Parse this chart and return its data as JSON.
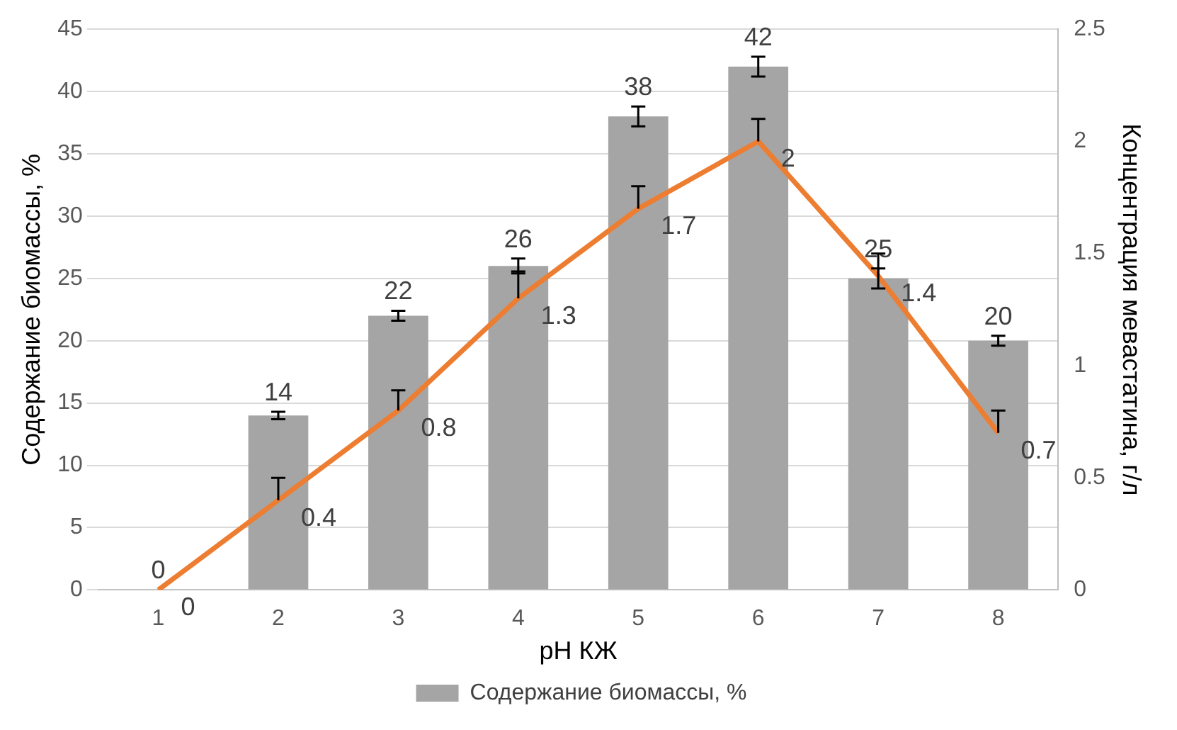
{
  "chart_data": {
    "type": "bar",
    "xlabel": "pH КЖ",
    "ylabel": "Содержание биомассы, %",
    "y2label": "Концентрация мевастатина, г/л",
    "categories": [
      "1",
      "2",
      "3",
      "4",
      "5",
      "6",
      "7",
      "8"
    ],
    "series": [
      {
        "name": "Содержание биомассы, %",
        "color": "#a5a5a5",
        "values": [
          0,
          14,
          22,
          26,
          38,
          42,
          25,
          20
        ],
        "errors": [
          null,
          0.3,
          0.4,
          0.6,
          0.8,
          0.8,
          0.8,
          0.4
        ]
      },
      {
        "type": "line",
        "axis": "y2",
        "color": "#ed7d31",
        "values": [
          0,
          0.4,
          0.8,
          1.3,
          1.7,
          2,
          1.4,
          0.7
        ],
        "errors": [
          null,
          [
            0.4,
            0.5
          ],
          [
            0.8,
            0.89
          ],
          [
            1.3,
            1.42
          ],
          [
            1.7,
            1.8
          ],
          [
            2,
            2.1
          ],
          [
            1.4,
            1.5
          ],
          [
            0.7,
            0.8
          ]
        ]
      }
    ],
    "ylim": [
      0,
      45
    ],
    "yticks": [
      0,
      5,
      10,
      15,
      20,
      25,
      30,
      35,
      40,
      45
    ],
    "y2lim": [
      0,
      2.5
    ],
    "y2ticks": [
      0,
      0.5,
      1,
      1.5,
      2,
      2.5
    ],
    "grid": "y",
    "legend": "bottom",
    "marker": "none",
    "data_labels": true
  }
}
